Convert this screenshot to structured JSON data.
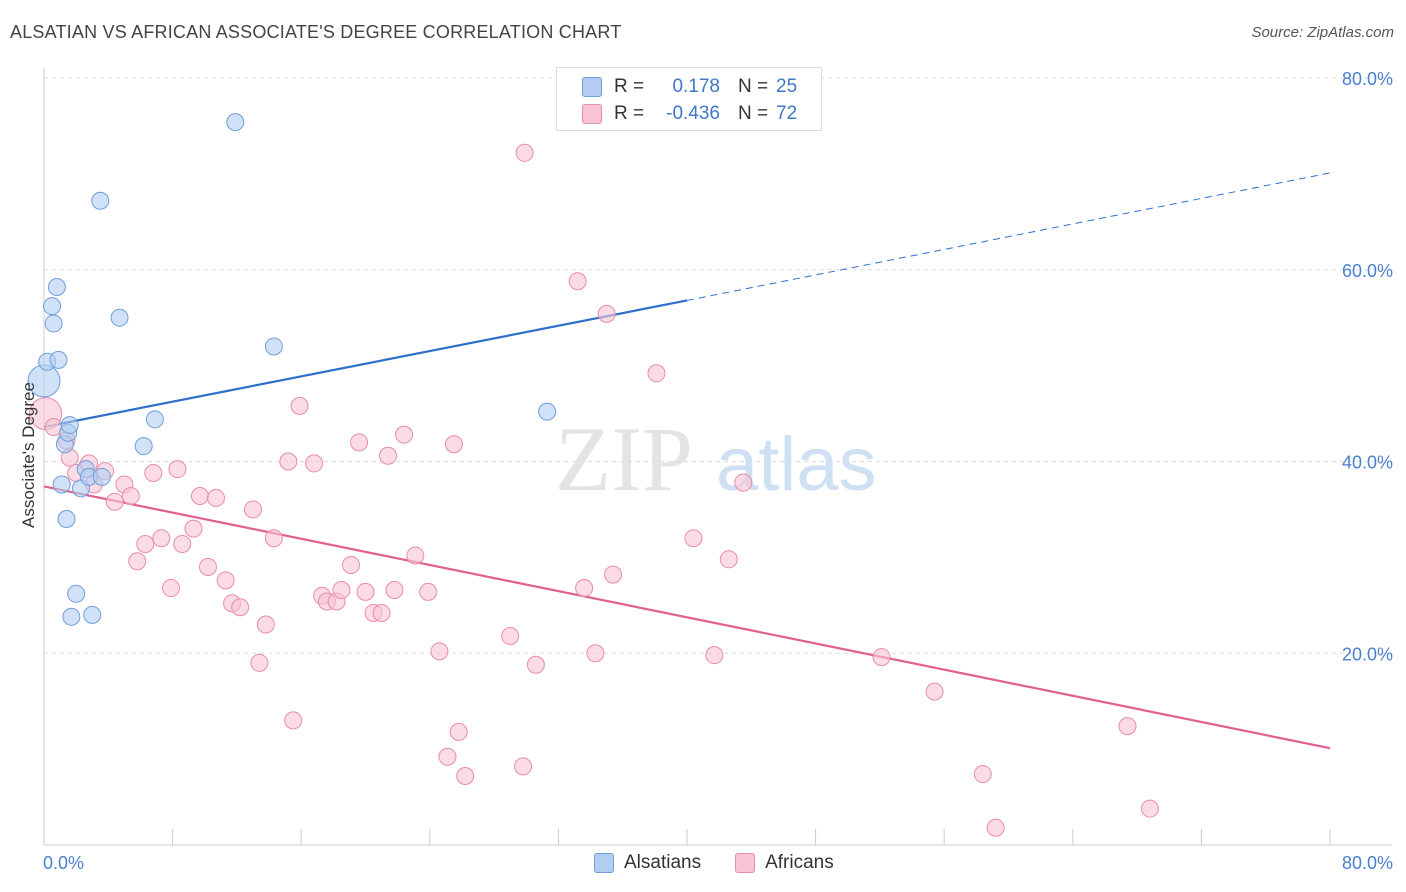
{
  "title": "ALSATIAN VS AFRICAN ASSOCIATE'S DEGREE CORRELATION CHART",
  "source": "Source: ZipAtlas.com",
  "colors": {
    "alsatians_fill": "#b3cdf2",
    "alsatians_stroke": "#6f9edb",
    "alsatians_line": "#2e6fcc",
    "africans_fill": "#f8c4d4",
    "africans_stroke": "#e98cab",
    "africans_line": "#e2608f",
    "tick_text": "#4a80cf",
    "grid": "#dddddd",
    "watermark": "#e6e6e6"
  },
  "legend": {
    "rows": [
      {
        "r_label": "R =",
        "r_value": "0.178",
        "n_label": "N =",
        "n_value": "25"
      },
      {
        "r_label": "R =",
        "r_value": "-0.436",
        "n_label": "N =",
        "n_value": "72"
      }
    ],
    "series_names": [
      "Alsatians",
      "Africans"
    ]
  },
  "watermark": {
    "zip": "ZIP",
    "atlas": "atlas"
  },
  "chart_data": {
    "type": "scatter",
    "xlabel": "",
    "ylabel": "Associate's Degree",
    "xlim": [
      0,
      80
    ],
    "ylim": [
      0,
      80
    ],
    "x_tick_labels": [
      {
        "value": 0,
        "label": "0.0%"
      },
      {
        "value": 80,
        "label": "80.0%"
      }
    ],
    "y_tick_labels": [
      {
        "value": 20,
        "label": "20.0%"
      },
      {
        "value": 40,
        "label": "40.0%"
      },
      {
        "value": 60,
        "label": "60.0%"
      },
      {
        "value": 80,
        "label": "80.0%"
      }
    ],
    "series": [
      {
        "name": "Alsatians",
        "r": 0.178,
        "n": 25,
        "trend": {
          "x0": 0,
          "y0": 43.6,
          "x1": 40,
          "y1": 56.8,
          "dashed_to_x": 80,
          "dashed_to_y": 70.1
        },
        "points": [
          {
            "x": 0.0,
            "y": 48.4,
            "big": true
          },
          {
            "x": 0.2,
            "y": 50.4
          },
          {
            "x": 0.5,
            "y": 56.2
          },
          {
            "x": 0.6,
            "y": 54.4
          },
          {
            "x": 0.8,
            "y": 58.2
          },
          {
            "x": 0.9,
            "y": 50.6
          },
          {
            "x": 1.1,
            "y": 37.6
          },
          {
            "x": 1.3,
            "y": 41.8
          },
          {
            "x": 1.4,
            "y": 34.0
          },
          {
            "x": 1.5,
            "y": 43.0
          },
          {
            "x": 1.6,
            "y": 43.8
          },
          {
            "x": 1.7,
            "y": 23.8
          },
          {
            "x": 2.0,
            "y": 26.2
          },
          {
            "x": 2.3,
            "y": 37.2
          },
          {
            "x": 2.6,
            "y": 39.2
          },
          {
            "x": 2.8,
            "y": 38.4
          },
          {
            "x": 3.0,
            "y": 24.0
          },
          {
            "x": 3.5,
            "y": 67.2
          },
          {
            "x": 3.6,
            "y": 38.4
          },
          {
            "x": 4.7,
            "y": 55.0
          },
          {
            "x": 6.2,
            "y": 41.6
          },
          {
            "x": 6.9,
            "y": 44.4
          },
          {
            "x": 11.9,
            "y": 75.4
          },
          {
            "x": 14.3,
            "y": 52.0
          },
          {
            "x": 31.3,
            "y": 45.2
          }
        ]
      },
      {
        "name": "Africans",
        "r": -0.436,
        "n": 72,
        "trend": {
          "x0": 0,
          "y0": 37.4,
          "x1": 80,
          "y1": 10.1
        },
        "points": [
          {
            "x": 0.1,
            "y": 45.0,
            "big": true
          },
          {
            "x": 0.6,
            "y": 43.6
          },
          {
            "x": 1.4,
            "y": 42.2
          },
          {
            "x": 1.6,
            "y": 40.4
          },
          {
            "x": 2.0,
            "y": 38.8
          },
          {
            "x": 2.8,
            "y": 39.8
          },
          {
            "x": 3.1,
            "y": 37.6
          },
          {
            "x": 3.8,
            "y": 39.0
          },
          {
            "x": 4.4,
            "y": 35.8
          },
          {
            "x": 5.0,
            "y": 37.6
          },
          {
            "x": 5.4,
            "y": 36.4
          },
          {
            "x": 5.8,
            "y": 29.6
          },
          {
            "x": 6.3,
            "y": 31.4
          },
          {
            "x": 6.8,
            "y": 38.8
          },
          {
            "x": 7.3,
            "y": 32.0
          },
          {
            "x": 7.9,
            "y": 26.8
          },
          {
            "x": 8.3,
            "y": 39.2
          },
          {
            "x": 8.6,
            "y": 31.4
          },
          {
            "x": 9.3,
            "y": 33.0
          },
          {
            "x": 9.7,
            "y": 36.4
          },
          {
            "x": 10.2,
            "y": 29.0
          },
          {
            "x": 10.7,
            "y": 36.2
          },
          {
            "x": 11.3,
            "y": 27.6
          },
          {
            "x": 11.7,
            "y": 25.2
          },
          {
            "x": 12.2,
            "y": 24.8
          },
          {
            "x": 13.0,
            "y": 35.0
          },
          {
            "x": 13.4,
            "y": 19.0
          },
          {
            "x": 13.8,
            "y": 23.0
          },
          {
            "x": 14.3,
            "y": 32.0
          },
          {
            "x": 15.2,
            "y": 40.0
          },
          {
            "x": 15.5,
            "y": 13.0
          },
          {
            "x": 15.9,
            "y": 45.8
          },
          {
            "x": 16.8,
            "y": 39.8
          },
          {
            "x": 17.3,
            "y": 26.0
          },
          {
            "x": 17.6,
            "y": 25.4
          },
          {
            "x": 18.2,
            "y": 25.4
          },
          {
            "x": 18.5,
            "y": 26.6
          },
          {
            "x": 19.1,
            "y": 29.2
          },
          {
            "x": 19.6,
            "y": 42.0
          },
          {
            "x": 20.0,
            "y": 26.4
          },
          {
            "x": 20.5,
            "y": 24.2
          },
          {
            "x": 21.0,
            "y": 24.2
          },
          {
            "x": 21.4,
            "y": 40.6
          },
          {
            "x": 21.8,
            "y": 26.6
          },
          {
            "x": 22.4,
            "y": 42.8
          },
          {
            "x": 23.1,
            "y": 30.2
          },
          {
            "x": 23.9,
            "y": 26.4
          },
          {
            "x": 24.6,
            "y": 20.2
          },
          {
            "x": 25.1,
            "y": 9.2
          },
          {
            "x": 25.5,
            "y": 41.8
          },
          {
            "x": 25.8,
            "y": 11.8
          },
          {
            "x": 26.2,
            "y": 7.2
          },
          {
            "x": 29.0,
            "y": 21.8
          },
          {
            "x": 29.8,
            "y": 8.2
          },
          {
            "x": 29.9,
            "y": 72.2
          },
          {
            "x": 30.6,
            "y": 18.8
          },
          {
            "x": 33.2,
            "y": 58.8
          },
          {
            "x": 33.6,
            "y": 26.8
          },
          {
            "x": 34.3,
            "y": 20.0
          },
          {
            "x": 35.0,
            "y": 55.4
          },
          {
            "x": 35.4,
            "y": 28.2
          },
          {
            "x": 38.1,
            "y": 49.2
          },
          {
            "x": 40.4,
            "y": 32.0
          },
          {
            "x": 41.7,
            "y": 19.8
          },
          {
            "x": 42.6,
            "y": 29.8
          },
          {
            "x": 43.5,
            "y": 37.8
          },
          {
            "x": 52.1,
            "y": 19.6
          },
          {
            "x": 55.4,
            "y": 16.0
          },
          {
            "x": 58.4,
            "y": 7.4
          },
          {
            "x": 59.2,
            "y": 1.8
          },
          {
            "x": 67.4,
            "y": 12.4
          },
          {
            "x": 68.8,
            "y": 3.8
          }
        ]
      }
    ]
  }
}
